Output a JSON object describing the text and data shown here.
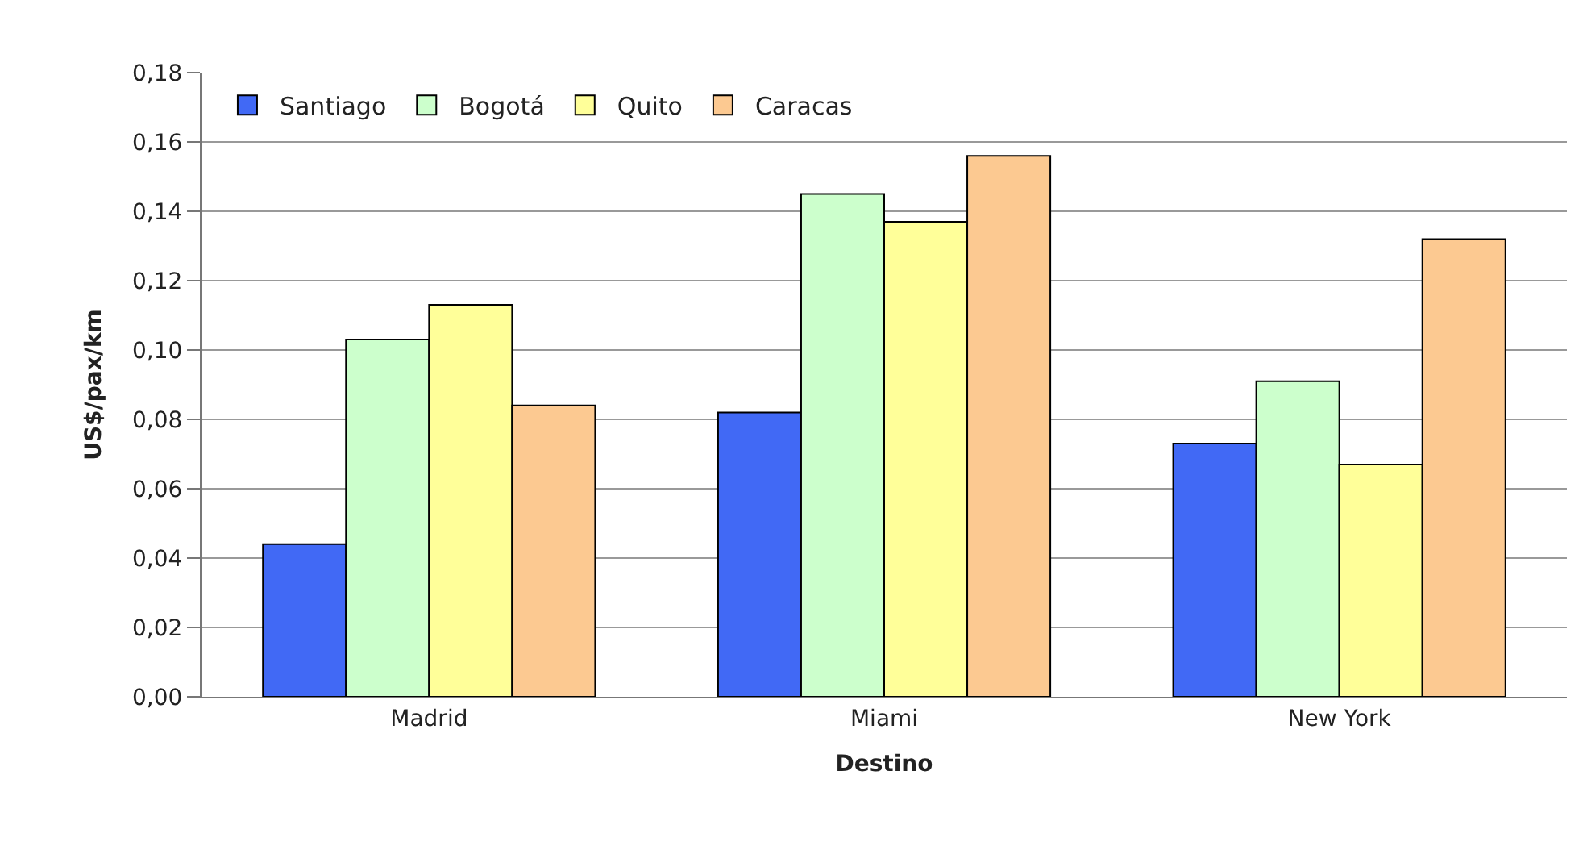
{
  "chart_data": {
    "type": "bar",
    "xlabel": "Destino",
    "ylabel": "US$/pax/km",
    "categories": [
      "Madrid",
      "Miami",
      "New York"
    ],
    "series": [
      {
        "name": "Santiago",
        "color": "#4169f5",
        "values": [
          0.044,
          0.082,
          0.073
        ]
      },
      {
        "name": "Bogotá",
        "color": "#ccffcc",
        "values": [
          0.103,
          0.145,
          0.091
        ]
      },
      {
        "name": "Quito",
        "color": "#ffff99",
        "values": [
          0.113,
          0.137,
          0.067
        ]
      },
      {
        "name": "Caracas",
        "color": "#fcc991",
        "values": [
          0.084,
          0.156,
          0.132
        ]
      }
    ],
    "ylim": [
      0,
      0.18
    ],
    "yticks": [
      {
        "value": 0,
        "label": "0,00"
      },
      {
        "value": 0.02,
        "label": "0,02"
      },
      {
        "value": 0.04,
        "label": "0,04"
      },
      {
        "value": 0.06,
        "label": "0,06"
      },
      {
        "value": 0.08,
        "label": "0,08"
      },
      {
        "value": 0.1,
        "label": "0,10"
      },
      {
        "value": 0.12,
        "label": "0,12"
      },
      {
        "value": 0.14,
        "label": "0,14"
      },
      {
        "value": 0.16,
        "label": "0,16"
      },
      {
        "value": 0.18,
        "label": "0,18"
      }
    ],
    "grid": "y",
    "legend": "top left"
  }
}
